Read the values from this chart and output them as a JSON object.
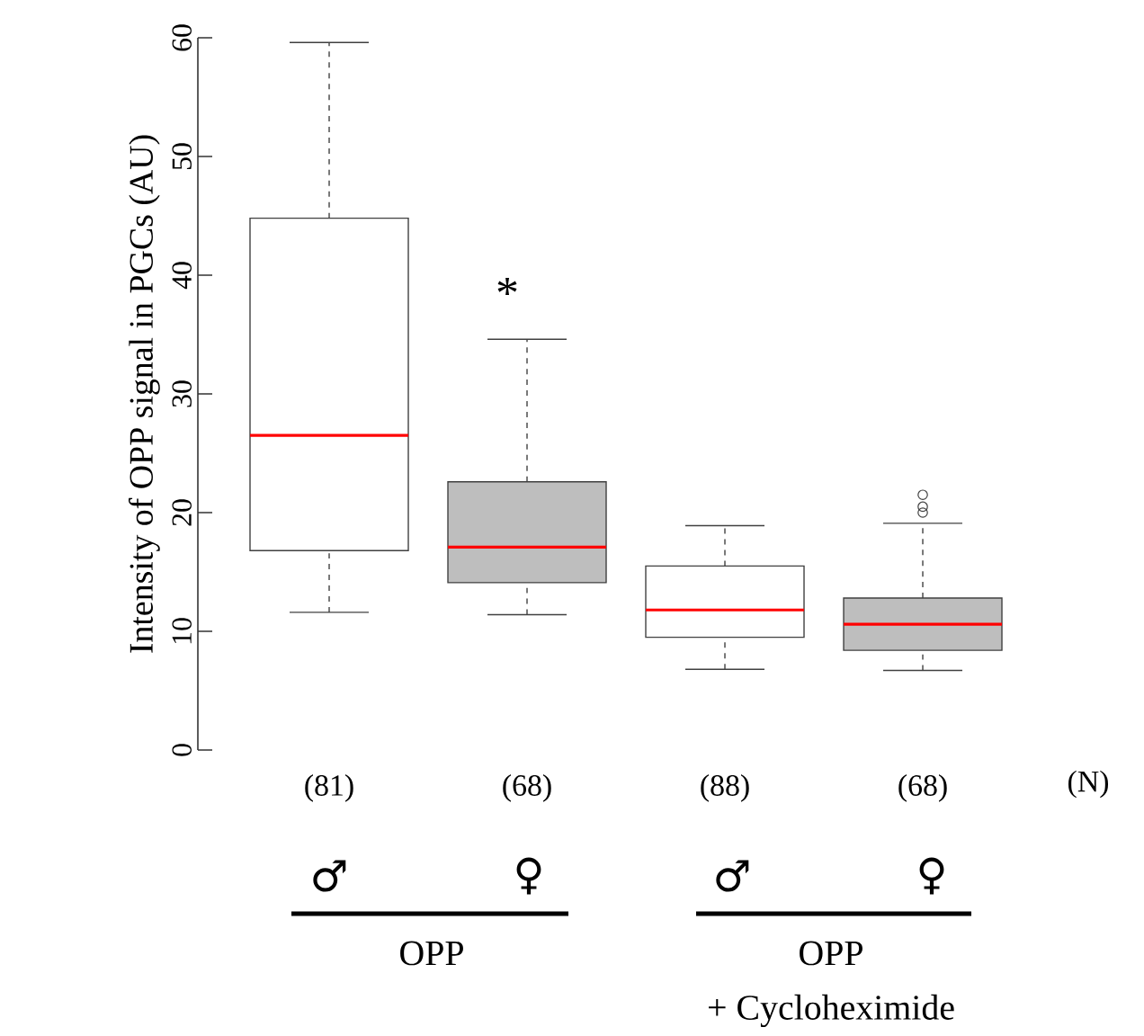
{
  "chart_data": {
    "type": "box",
    "ylabel": "Intensity of OPP signal in PGCs (AU)",
    "categories": [
      "(81)",
      "(68)",
      "(88)",
      "(68)"
    ],
    "colors": [
      "#ffffff",
      "#bebebe",
      "#ffffff",
      "#bebebe"
    ],
    "boxes": [
      {
        "low": 11.6,
        "q1": 16.8,
        "median": 26.5,
        "q3": 44.8,
        "high": 59.6
      },
      {
        "low": 11.4,
        "q1": 14.1,
        "median": 17.1,
        "q3": 22.6,
        "high": 34.6
      },
      {
        "low": 6.8,
        "q1": 9.5,
        "median": 11.8,
        "q3": 15.5,
        "high": 18.9
      },
      {
        "low": 6.7,
        "q1": 8.4,
        "median": 10.6,
        "q3": 12.8,
        "high": 19.1,
        "outliers": [
          20.0,
          20.5,
          21.5
        ]
      }
    ],
    "ylim": [
      0,
      60
    ],
    "yticks": [
      0,
      10,
      20,
      30,
      40,
      50,
      60
    ],
    "annotations": [
      "*",
      "(N)",
      "♂",
      "♀",
      "♂",
      "♀",
      "OPP",
      "OPP",
      "+ Cycloheximide"
    ]
  }
}
